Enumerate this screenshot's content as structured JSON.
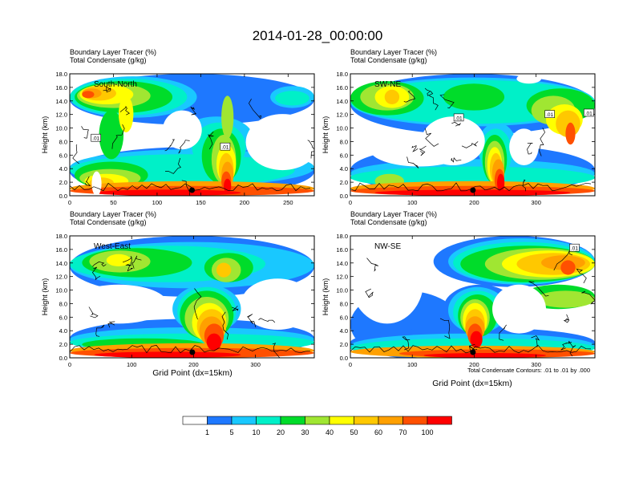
{
  "title": "2014-01-28_00:00:00",
  "panel_header": {
    "line1": "Boundary Layer Tracer   (%)",
    "line2": "Total Condensate   (g/kg)"
  },
  "y_axis_label": "Height (km)",
  "x_axis_label": "Grid Point (dx=15km)",
  "contour_note": "Total Condensate Contours: .01 to .01 by .000",
  "contour_label": ".01",
  "colors": [
    "#ffffff",
    "#1e78ff",
    "#19c8ff",
    "#00f0c8",
    "#00dc2a",
    "#a0e632",
    "#ffff00",
    "#ffc800",
    "#ffa000",
    "#ff5000",
    "#ff0000"
  ],
  "colorbar_labels": [
    "1",
    "5",
    "10",
    "20",
    "30",
    "40",
    "50",
    "60",
    "70",
    "100"
  ],
  "chart_data": [
    {
      "type": "heatmap",
      "name": "South-North",
      "xlim": [
        0,
        280
      ],
      "ylim": [
        0,
        18
      ],
      "xticks": [
        "0",
        "50",
        "100",
        "150",
        "200",
        "250"
      ],
      "yticks": [
        "0.0",
        "2.0",
        "4.0",
        "6.0",
        "8.0",
        "10.0",
        "12.0",
        "14.0",
        "16.0",
        "18.0"
      ],
      "marker_x": 140,
      "contour_labels": [
        {
          "x": 30,
          "y": 8.5
        },
        {
          "x": 178,
          "y": 7.2
        }
      ]
    },
    {
      "type": "heatmap",
      "name": "SW-NE",
      "xlim": [
        0,
        395
      ],
      "ylim": [
        0,
        18
      ],
      "xticks": [
        "0",
        "100",
        "200",
        "300"
      ],
      "yticks": [
        "0.0",
        "2.0",
        "4.0",
        "6.0",
        "8.0",
        "10.0",
        "12.0",
        "14.0",
        "16.0",
        "18.0"
      ],
      "marker_x": 198,
      "contour_labels": [
        {
          "x": 175,
          "y": 11.5
        },
        {
          "x": 322,
          "y": 12.0
        },
        {
          "x": 385,
          "y": 12.2
        }
      ]
    },
    {
      "type": "heatmap",
      "name": "West-East",
      "xlim": [
        0,
        395
      ],
      "ylim": [
        0,
        18
      ],
      "xticks": [
        "0",
        "100",
        "200",
        "300"
      ],
      "yticks": [
        "0.0",
        "2.0",
        "4.0",
        "6.0",
        "8.0",
        "10.0",
        "12.0",
        "14.0",
        "16.0",
        "18.0"
      ],
      "marker_x": 198,
      "contour_labels": []
    },
    {
      "type": "heatmap",
      "name": "NW-SE",
      "xlim": [
        0,
        395
      ],
      "ylim": [
        0,
        18
      ],
      "xticks": [
        "0",
        "100",
        "200",
        "300"
      ],
      "yticks": [
        "0.0",
        "2.0",
        "4.0",
        "6.0",
        "8.0",
        "10.0",
        "12.0",
        "14.0",
        "16.0",
        "18.0"
      ],
      "marker_x": 198,
      "contour_labels": [
        {
          "x": 362,
          "y": 16.2
        }
      ]
    }
  ]
}
